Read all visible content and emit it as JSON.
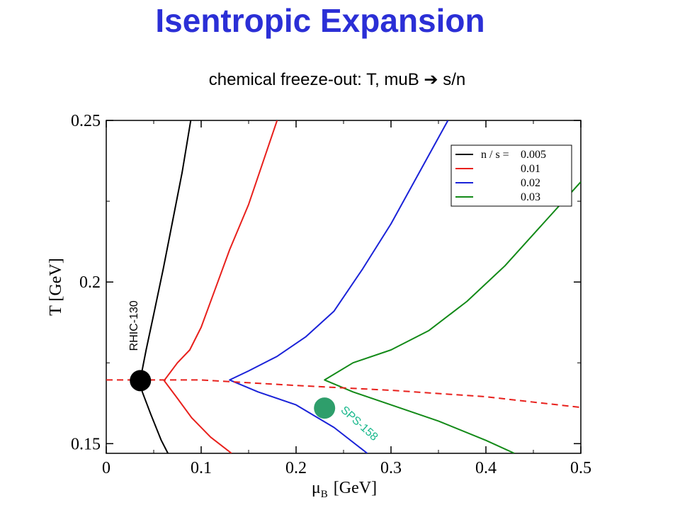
{
  "slide": {
    "title": "Isentropic Expansion",
    "subtitle": "chemical freeze-out: T, muB ➔ s/n"
  },
  "colors": {
    "title": "#2b2fd6",
    "black": "#000000",
    "red": "#e8201c",
    "blue": "#1a22d8",
    "green": "#138a18",
    "sps_marker": "#2e9e6b",
    "sps_text": "#19b88c"
  },
  "chart_data": {
    "type": "line",
    "xlabel_main": "μ",
    "xlabel_sub": "B",
    "xlabel_unit": "[GeV]",
    "ylabel": "T [GeV]",
    "xlim": [
      0,
      0.5
    ],
    "ylim": [
      0.147,
      0.25
    ],
    "x_ticks": [
      0,
      0.1,
      0.2,
      0.3,
      0.4,
      0.5
    ],
    "x_tick_labels": [
      "0",
      "0.1",
      "0.2",
      "0.3",
      "0.4",
      "0.5"
    ],
    "y_ticks": [
      0.15,
      0.2,
      0.25
    ],
    "y_tick_labels": [
      "0.15",
      "0.2",
      "0.25"
    ],
    "grid": false,
    "legend_position": "top-right",
    "legend_prefix": "n / s =",
    "series": [
      {
        "name": "0.005",
        "color": "#000000",
        "points": [
          [
            0.089,
            0.25
          ],
          [
            0.08,
            0.234
          ],
          [
            0.07,
            0.219
          ],
          [
            0.06,
            0.204
          ],
          [
            0.05,
            0.19
          ],
          [
            0.042,
            0.179
          ],
          [
            0.037,
            0.1715
          ],
          [
            0.036,
            0.1695
          ],
          [
            0.038,
            0.166
          ],
          [
            0.047,
            0.159
          ],
          [
            0.058,
            0.151
          ],
          [
            0.065,
            0.147
          ]
        ]
      },
      {
        "name": "0.01",
        "color": "#e8201c",
        "points": [
          [
            0.18,
            0.25
          ],
          [
            0.165,
            0.237
          ],
          [
            0.15,
            0.224
          ],
          [
            0.13,
            0.21
          ],
          [
            0.115,
            0.198
          ],
          [
            0.1,
            0.186
          ],
          [
            0.088,
            0.179
          ],
          [
            0.075,
            0.175
          ],
          [
            0.061,
            0.1695
          ],
          [
            0.075,
            0.164
          ],
          [
            0.09,
            0.158
          ],
          [
            0.11,
            0.152
          ],
          [
            0.132,
            0.147
          ]
        ]
      },
      {
        "name": "0.02",
        "color": "#1a22d8",
        "points": [
          [
            0.36,
            0.25
          ],
          [
            0.33,
            0.234
          ],
          [
            0.3,
            0.218
          ],
          [
            0.27,
            0.204
          ],
          [
            0.24,
            0.191
          ],
          [
            0.21,
            0.183
          ],
          [
            0.18,
            0.177
          ],
          [
            0.15,
            0.1725
          ],
          [
            0.13,
            0.1697
          ],
          [
            0.16,
            0.166
          ],
          [
            0.2,
            0.162
          ],
          [
            0.24,
            0.155
          ],
          [
            0.275,
            0.147
          ]
        ]
      },
      {
        "name": "0.03",
        "color": "#138a18",
        "points": [
          [
            0.5,
            0.231
          ],
          [
            0.46,
            0.218
          ],
          [
            0.42,
            0.205
          ],
          [
            0.38,
            0.194
          ],
          [
            0.34,
            0.185
          ],
          [
            0.3,
            0.179
          ],
          [
            0.26,
            0.175
          ],
          [
            0.23,
            0.1697
          ],
          [
            0.26,
            0.166
          ],
          [
            0.3,
            0.162
          ],
          [
            0.35,
            0.157
          ],
          [
            0.4,
            0.151
          ],
          [
            0.43,
            0.147
          ]
        ]
      }
    ],
    "freezeout_curve": {
      "color": "#e8201c",
      "style": "dashed",
      "points": [
        [
          0,
          0.1697
        ],
        [
          0.1,
          0.1697
        ],
        [
          0.2,
          0.168
        ],
        [
          0.3,
          0.1665
        ],
        [
          0.4,
          0.1645
        ],
        [
          0.5,
          0.1612
        ]
      ]
    },
    "annotations": [
      {
        "label": "RHIC-130",
        "x": 0.036,
        "y": 0.1695,
        "color": "#000000"
      },
      {
        "label": "SPS-158",
        "x": 0.23,
        "y": 0.161,
        "color": "#19b88c"
      }
    ]
  }
}
